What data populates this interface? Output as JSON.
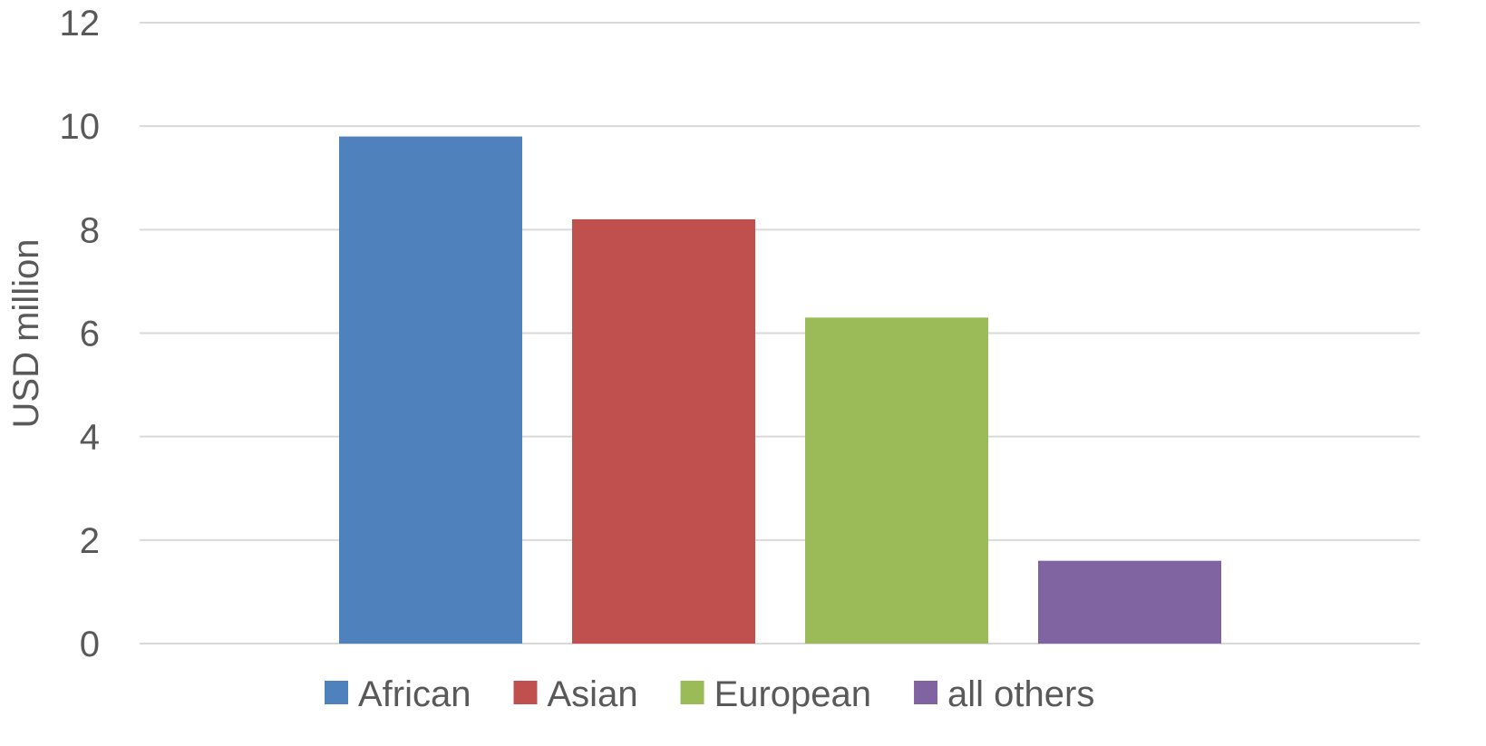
{
  "chart_data": {
    "type": "bar",
    "title": "",
    "xlabel": "",
    "ylabel": "USD million",
    "ylim": [
      0,
      12
    ],
    "yticks": [
      0,
      2,
      4,
      6,
      8,
      10,
      12
    ],
    "grid": true,
    "legend_position": "bottom",
    "series": [
      {
        "name": "African",
        "values": [
          9.8
        ],
        "color": "#4F81BD"
      },
      {
        "name": "Asian",
        "values": [
          8.2
        ],
        "color": "#C0504D"
      },
      {
        "name": "European",
        "values": [
          6.3
        ],
        "color": "#9BBB59"
      },
      {
        "name": "all others",
        "values": [
          1.6
        ],
        "color": "#8064A2"
      }
    ]
  }
}
